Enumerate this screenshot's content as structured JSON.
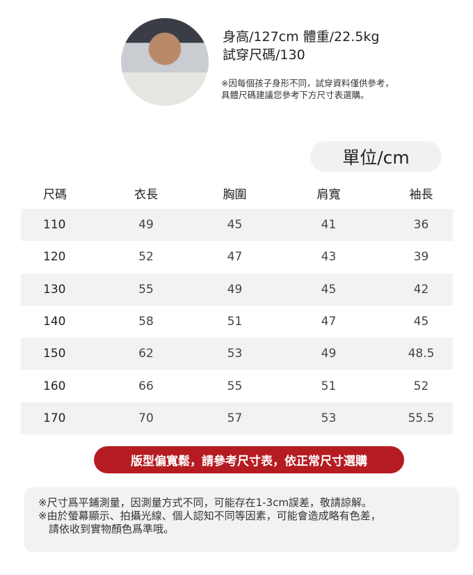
{
  "model": {
    "height_weight": "身高/127cm 體重/22.5kg",
    "size_tried": "試穿尺碼/130",
    "note_line1": "※因每個孩子身形不同，試穿資料僅供參考，",
    "note_line2": "具體尺碼建議您參考下方尺寸表選購。"
  },
  "unit_label": "單位/cm",
  "table": {
    "headers": [
      "尺碼",
      "衣長",
      "胸圍",
      "肩寬",
      "袖長"
    ],
    "rows": [
      [
        "110",
        "49",
        "45",
        "41",
        "36"
      ],
      [
        "120",
        "52",
        "47",
        "43",
        "39"
      ],
      [
        "130",
        "55",
        "49",
        "45",
        "42"
      ],
      [
        "140",
        "58",
        "51",
        "47",
        "45"
      ],
      [
        "150",
        "62",
        "53",
        "49",
        "48.5"
      ],
      [
        "160",
        "66",
        "55",
        "51",
        "52"
      ],
      [
        "170",
        "70",
        "57",
        "53",
        "55.5"
      ]
    ]
  },
  "banner": "版型偏寬鬆，請參考尺寸表，依正常尺寸選購",
  "notes": [
    "※尺寸爲平鋪測量，因測量方式不同，可能存在1-3cm誤差，敬請諒解。",
    "※由於螢幕顯示、拍攝光線、個人認知不同等因素，可能會造成略有色差，",
    "請依收到實物顏色爲準哦。"
  ],
  "colors": {
    "banner": "#b51c22",
    "row_alt": "#f2f2f2"
  }
}
